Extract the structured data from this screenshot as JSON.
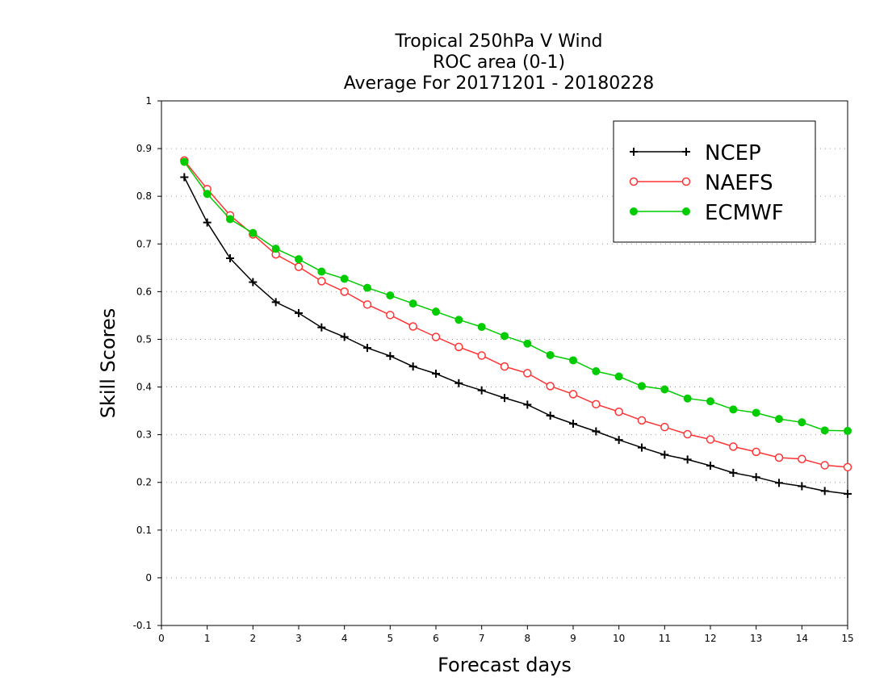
{
  "chart_data": {
    "type": "line",
    "title_lines": [
      "Tropical 250hPa V Wind",
      "ROC area (0-1)",
      "Average For 20171201 - 20180228"
    ],
    "xlabel": "Forecast days",
    "ylabel": "Skill Scores",
    "xlim": [
      0,
      15
    ],
    "ylim": [
      -0.1,
      1
    ],
    "xticks": [
      0,
      1,
      2,
      3,
      4,
      5,
      6,
      7,
      8,
      9,
      10,
      11,
      12,
      13,
      14,
      15
    ],
    "yticks": [
      -0.1,
      0,
      0.1,
      0.2,
      0.3,
      0.4,
      0.5,
      0.6,
      0.7,
      0.8,
      0.9,
      1
    ],
    "ytick_labels": [
      "-0.1",
      "0",
      "0.1",
      "0.2",
      "0.3",
      "0.4",
      "0.5",
      "0.6",
      "0.7",
      "0.8",
      "0.9",
      "1"
    ],
    "grid": true,
    "legend_position": "top-right",
    "x": [
      0.5,
      1,
      1.5,
      2,
      2.5,
      3,
      3.5,
      4,
      4.5,
      5,
      5.5,
      6,
      6.5,
      7,
      7.5,
      8,
      8.5,
      9,
      9.5,
      10,
      10.5,
      11,
      11.5,
      12,
      12.5,
      13,
      13.5,
      14,
      14.5,
      15
    ],
    "series": [
      {
        "name": "NCEP",
        "color": "#000000",
        "marker": "plus",
        "values": [
          0.84,
          0.745,
          0.67,
          0.62,
          0.578,
          0.555,
          0.525,
          0.505,
          0.482,
          0.465,
          0.443,
          0.428,
          0.408,
          0.393,
          0.377,
          0.363,
          0.34,
          0.323,
          0.307,
          0.289,
          0.273,
          0.258,
          0.248,
          0.235,
          0.22,
          0.211,
          0.199,
          0.192,
          0.182,
          0.176
        ]
      },
      {
        "name": "NAEFS",
        "color": "#ff3333",
        "marker": "open-circle",
        "values": [
          0.875,
          0.815,
          0.76,
          0.72,
          0.678,
          0.652,
          0.622,
          0.6,
          0.573,
          0.551,
          0.527,
          0.505,
          0.484,
          0.466,
          0.443,
          0.429,
          0.402,
          0.385,
          0.364,
          0.348,
          0.33,
          0.316,
          0.301,
          0.29,
          0.275,
          0.264,
          0.252,
          0.249,
          0.236,
          0.232
        ]
      },
      {
        "name": "ECMWF",
        "color": "#00cc00",
        "marker": "filled-circle",
        "values": [
          0.872,
          0.805,
          0.752,
          0.723,
          0.69,
          0.668,
          0.642,
          0.627,
          0.608,
          0.592,
          0.575,
          0.558,
          0.541,
          0.526,
          0.507,
          0.491,
          0.467,
          0.456,
          0.433,
          0.422,
          0.402,
          0.395,
          0.376,
          0.37,
          0.353,
          0.346,
          0.333,
          0.326,
          0.309,
          0.308
        ]
      }
    ]
  }
}
